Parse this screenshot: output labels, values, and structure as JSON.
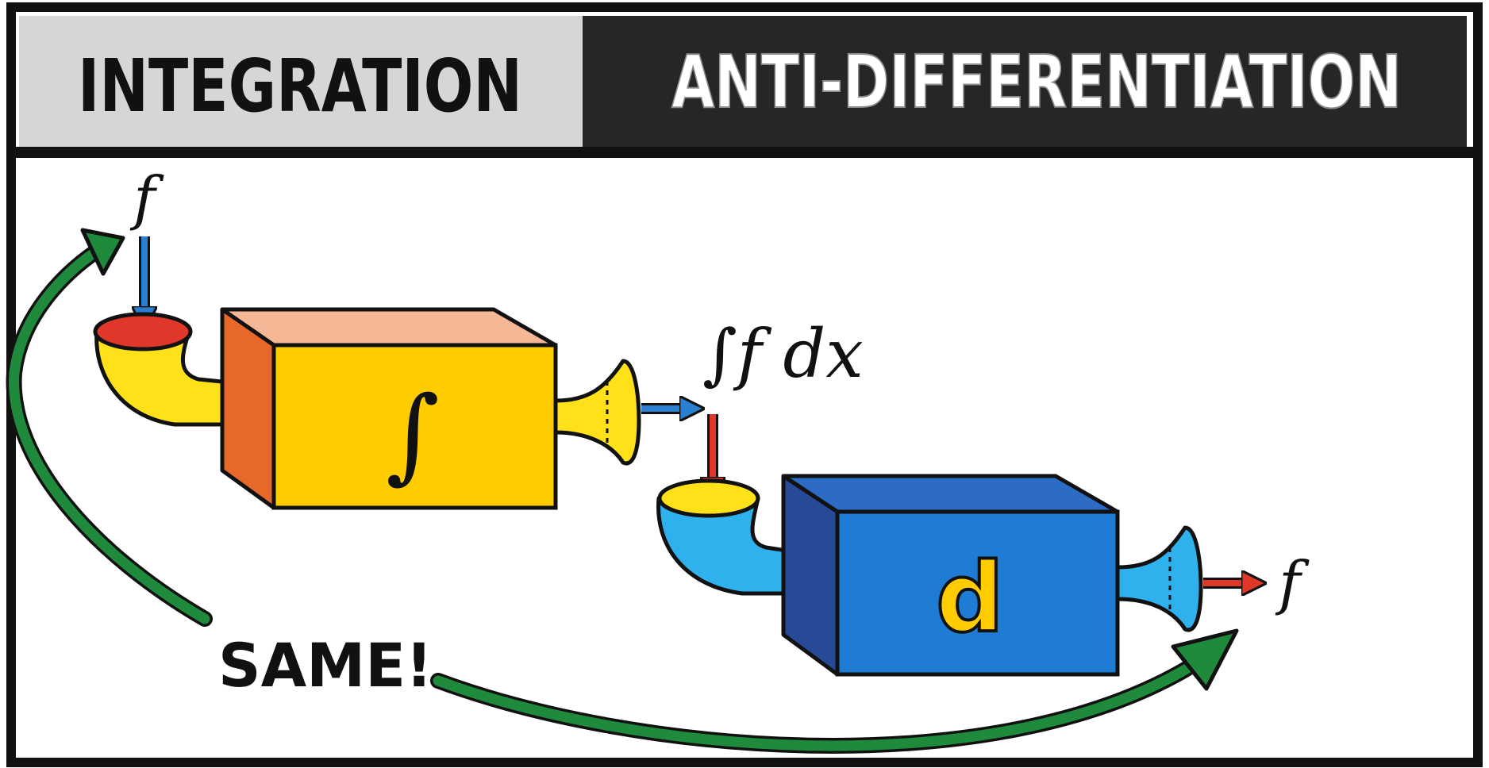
{
  "header": {
    "left_label": "INTEGRATION",
    "right_label": "ANTI-DIFFERENTIATION"
  },
  "labels": {
    "input_f": "f",
    "integral_output": "∫f dx",
    "output_f": "f",
    "same": "SAME!"
  },
  "machines": {
    "integrator_symbol": "∫",
    "differentiator_symbol": "d"
  },
  "colors": {
    "header_left_bg": "#d6d6d6",
    "header_right_bg": "#262626",
    "integrator_front": "#ffcc00",
    "integrator_side": "#e8682a",
    "integrator_top": "#f5b897",
    "differentiator_front": "#1f7cd4",
    "differentiator_side": "#274a96",
    "differentiator_top": "#2c6cc4",
    "funnel_yellow": "#ffe11a",
    "funnel_blue": "#2fb1ee",
    "arrow_blue": "#2a7fd0",
    "arrow_red": "#e0372b",
    "arrow_green": "#1f8a3c",
    "outline": "#111111"
  }
}
